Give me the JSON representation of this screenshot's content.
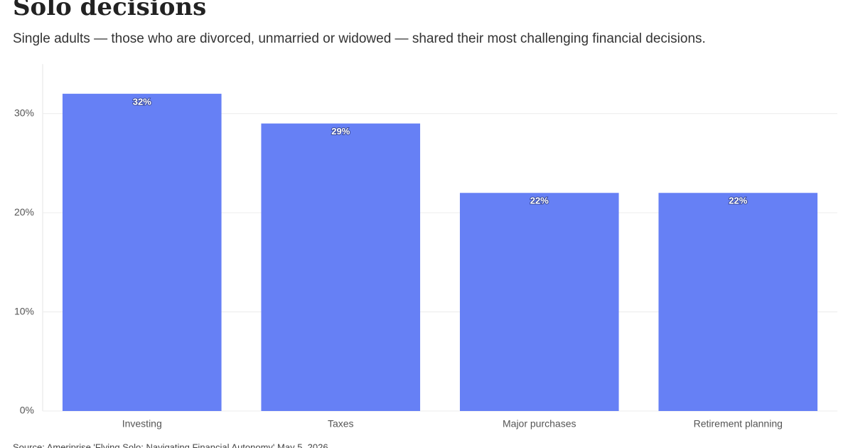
{
  "chart_data": {
    "type": "bar",
    "title": "Solo decisions",
    "subtitle": "Single adults — those who are divorced, unmarried or widowed — shared their most challenging financial decisions.",
    "categories": [
      "Investing",
      "Taxes",
      "Major purchases",
      "Retirement planning"
    ],
    "values": [
      32,
      29,
      22,
      22
    ],
    "value_labels": [
      "32%",
      "29%",
      "22%",
      "22%"
    ],
    "color": "#6680f5",
    "ylim": [
      0,
      35
    ],
    "yticks": [
      {
        "value": 0,
        "label": "0%"
      },
      {
        "value": 10,
        "label": "10%"
      },
      {
        "value": 20,
        "label": "20%"
      },
      {
        "value": 30,
        "label": "30%"
      }
    ],
    "grid": true,
    "source": "Source: Ameriprise 'Flying Solo: Navigating Financial Autonomy' May 5, 2026"
  }
}
